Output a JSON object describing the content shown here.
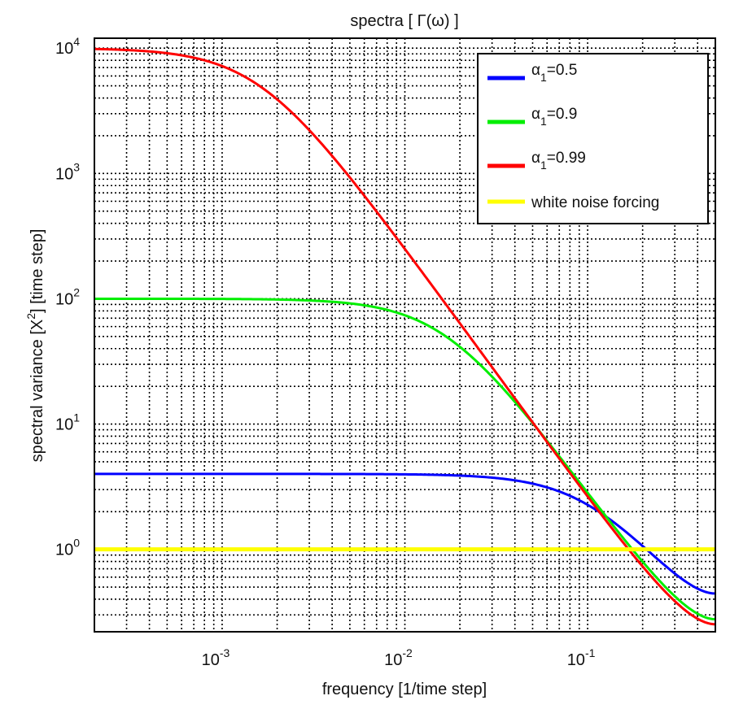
{
  "chart_data": {
    "type": "line",
    "title": "spectra  [ Γ(ω) ]",
    "xlabel": "frequency [1/time step]",
    "ylabel_parts": [
      "spectral variance [X",
      "2",
      "] [time step]"
    ],
    "x_scale": "log",
    "y_scale": "log",
    "xlim": [
      0.0002,
      0.5
    ],
    "ylim": [
      0.22,
      12000
    ],
    "x_ticks": [
      {
        "value": 0.001,
        "base": "10",
        "exp": "-3"
      },
      {
        "value": 0.01,
        "base": "10",
        "exp": "-2"
      },
      {
        "value": 0.1,
        "base": "10",
        "exp": "-1"
      }
    ],
    "y_ticks": [
      {
        "value": 1,
        "base": "10",
        "exp": "0"
      },
      {
        "value": 10,
        "base": "10",
        "exp": "1"
      },
      {
        "value": 100,
        "base": "10",
        "exp": "2"
      },
      {
        "value": 1000,
        "base": "10",
        "exp": "3"
      },
      {
        "value": 10000,
        "base": "10",
        "exp": "4"
      }
    ],
    "grid": true,
    "legend_position": "top-right",
    "series": [
      {
        "name_base": "α",
        "name_sub": "1",
        "name_value": "=0.5",
        "alpha": 0.5,
        "color": "#0000ff"
      },
      {
        "name_base": "α",
        "name_sub": "1",
        "name_value": "=0.9",
        "alpha": 0.9,
        "color": "#00ee00"
      },
      {
        "name_base": "α",
        "name_sub": "1",
        "name_value": "=0.99",
        "alpha": 0.99,
        "color": "#ff0000"
      },
      {
        "name": "white noise forcing",
        "constant": 1,
        "color": "#ffff00"
      }
    ]
  }
}
